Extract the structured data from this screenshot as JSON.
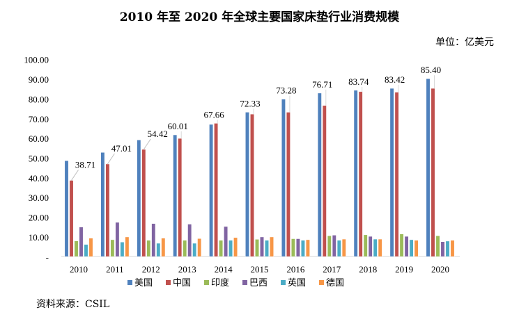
{
  "chart_data": {
    "type": "bar",
    "title": "2010 年至 2020 年全球主要国家床垫行业消费规模",
    "unit": "单位：亿美元",
    "source": "资料来源：CSIL",
    "categories": [
      "2010",
      "2011",
      "2012",
      "2013",
      "2014",
      "2015",
      "2016",
      "2017",
      "2018",
      "2019",
      "2020"
    ],
    "ylim": [
      0,
      100
    ],
    "yticks": [
      "-",
      "10.00",
      "20.00",
      "30.00",
      "40.00",
      "50.00",
      "60.00",
      "70.00",
      "80.00",
      "90.00",
      "100.00"
    ],
    "grid": false,
    "legend": "bottom",
    "series": [
      {
        "name": "美国",
        "color": "#4F81BD",
        "values": [
          48.7,
          52.9,
          59.2,
          61.8,
          67.1,
          73.3,
          79.9,
          83.0,
          84.4,
          85.4,
          90.3
        ]
      },
      {
        "name": "中国",
        "color": "#C0504D",
        "values": [
          38.71,
          47.01,
          54.42,
          60.01,
          67.66,
          72.33,
          73.28,
          76.71,
          83.74,
          83.42,
          85.4
        ]
      },
      {
        "name": "印度",
        "color": "#9BBB59",
        "values": [
          8.0,
          8.6,
          8.3,
          8.3,
          8.3,
          8.8,
          9.1,
          10.6,
          11.1,
          11.5,
          10.6
        ]
      },
      {
        "name": "巴西",
        "color": "#8064A2",
        "values": [
          15.0,
          17.4,
          16.8,
          16.5,
          15.3,
          10.0,
          9.1,
          10.9,
          10.3,
          10.3,
          7.6
        ]
      },
      {
        "name": "英国",
        "color": "#4BACC6",
        "values": [
          6.2,
          7.4,
          6.8,
          6.8,
          8.3,
          8.3,
          8.3,
          8.3,
          8.9,
          8.6,
          7.9
        ]
      },
      {
        "name": "德国",
        "color": "#F79646",
        "values": [
          9.4,
          10.0,
          9.4,
          9.2,
          9.7,
          10.0,
          8.6,
          8.9,
          8.9,
          8.3,
          8.3
        ]
      }
    ],
    "data_labels": [
      "38.71",
      "47.01",
      "54.42",
      "60.01",
      "67.66",
      "72.33",
      "73.28",
      "76.71",
      "83.74",
      "83.42",
      "85.40"
    ]
  }
}
